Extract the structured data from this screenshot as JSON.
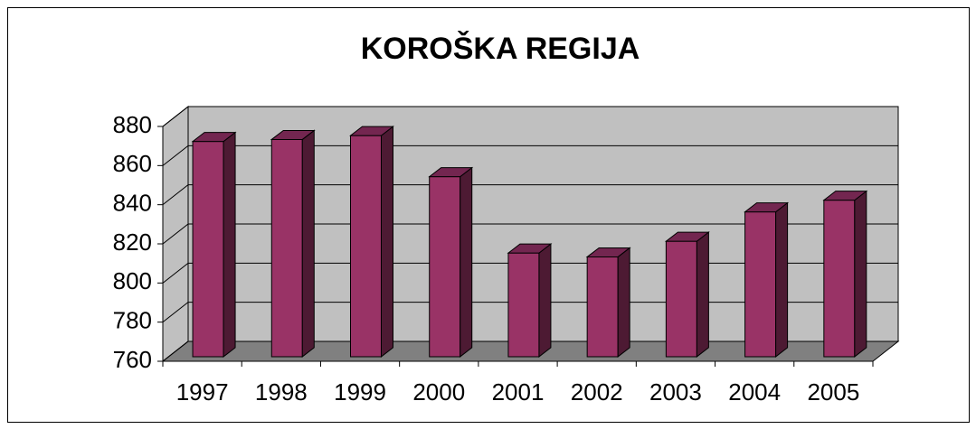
{
  "chart_data": {
    "type": "bar3d",
    "title": "KOROŠKA REGIJA",
    "categories": [
      "1997",
      "1998",
      "1999",
      "2000",
      "2001",
      "2002",
      "2003",
      "2004",
      "2005"
    ],
    "values": [
      870,
      871,
      873,
      852,
      813,
      811,
      819,
      834,
      840
    ],
    "color": "#993366",
    "ylim": [
      760,
      880
    ],
    "yticks": [
      760,
      780,
      800,
      820,
      840,
      860,
      880
    ],
    "grid": true
  }
}
